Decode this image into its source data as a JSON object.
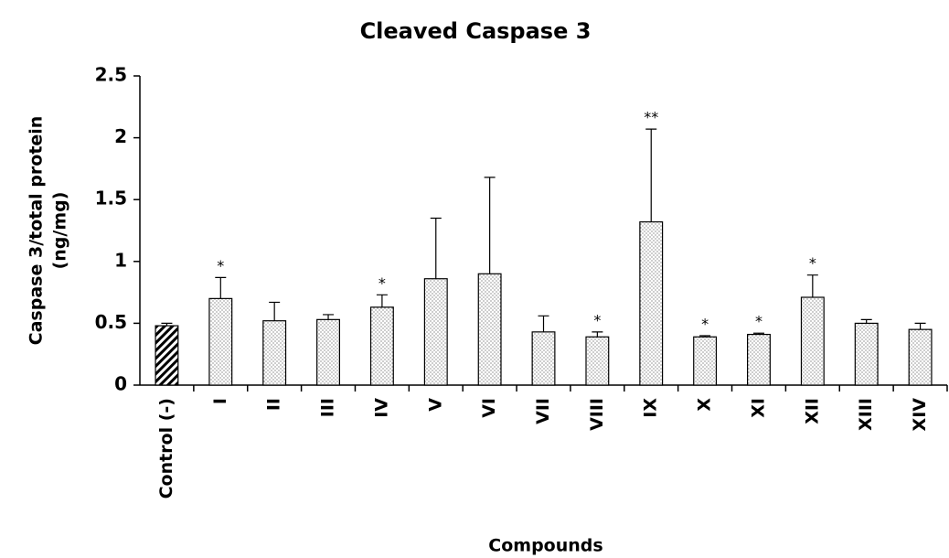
{
  "chart_data": {
    "type": "bar",
    "title": "Cleaved Caspase 3",
    "ylabel": [
      "Caspase 3/total protein",
      "(ng/mg)"
    ],
    "xlabel": "Compounds",
    "categories": [
      "Control (-)",
      "I",
      "II",
      "III",
      "IV",
      "V",
      "VI",
      "VII",
      "VIII",
      "IX",
      "X",
      "XI",
      "XII",
      "XIII",
      "XIV"
    ],
    "values": [
      0.48,
      0.7,
      0.52,
      0.53,
      0.63,
      0.86,
      0.9,
      0.43,
      0.39,
      1.32,
      0.39,
      0.41,
      0.71,
      0.5,
      0.45
    ],
    "errors": [
      0.02,
      0.17,
      0.15,
      0.04,
      0.1,
      0.49,
      0.78,
      0.13,
      0.04,
      0.75,
      0.01,
      0.01,
      0.18,
      0.03,
      0.05
    ],
    "significance": [
      null,
      "*",
      null,
      null,
      "*",
      null,
      null,
      null,
      "*",
      "**",
      "*",
      "*",
      "*",
      null,
      null
    ],
    "patterns": [
      "hatch",
      "dots",
      "dots",
      "dots",
      "dots",
      "dots",
      "dots",
      "dots",
      "dots",
      "dots",
      "dots",
      "dots",
      "dots",
      "dots",
      "dots"
    ],
    "color": "#000000",
    "ylim": [
      0,
      2.5
    ],
    "yticks": [
      0,
      0.5,
      1,
      1.5,
      2,
      2.5
    ],
    "grid": false
  }
}
